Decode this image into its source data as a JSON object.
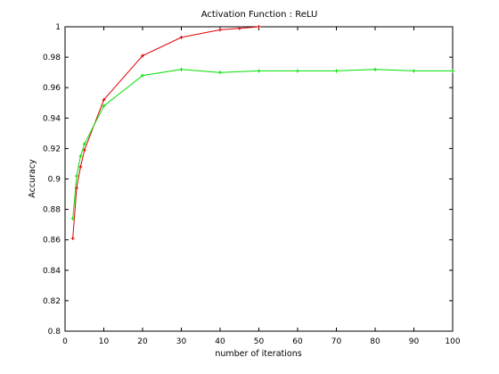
{
  "chart_data": {
    "type": "line",
    "title": "Activation Function : ReLU",
    "xlabel": "number of iterations",
    "ylabel": "Accuracy",
    "xlim": [
      0,
      100
    ],
    "ylim": [
      0.8,
      1.0
    ],
    "xticks": [
      "0",
      "10",
      "20",
      "30",
      "40",
      "50",
      "60",
      "70",
      "80",
      "90",
      "100"
    ],
    "yticks": [
      "0.8",
      "0.82",
      "0.84",
      "0.86",
      "0.88",
      "0.9",
      "0.92",
      "0.94",
      "0.96",
      "0.98",
      "1"
    ],
    "grid": false,
    "legend": "none",
    "series": [
      {
        "color": "#e00000",
        "x": [
          2,
          3,
          4,
          5,
          10,
          20,
          30,
          40,
          45,
          50
        ],
        "y": [
          0.861,
          0.894,
          0.908,
          0.919,
          0.952,
          0.981,
          0.993,
          0.998,
          0.999,
          1.0
        ]
      },
      {
        "color": "#00e000",
        "x": [
          2,
          3,
          4,
          5,
          10,
          20,
          30,
          40,
          50,
          60,
          70,
          80,
          90,
          100
        ],
        "y": [
          0.874,
          0.902,
          0.915,
          0.923,
          0.948,
          0.968,
          0.972,
          0.97,
          0.971,
          0.971,
          0.971,
          0.972,
          0.971,
          0.971
        ]
      }
    ]
  }
}
